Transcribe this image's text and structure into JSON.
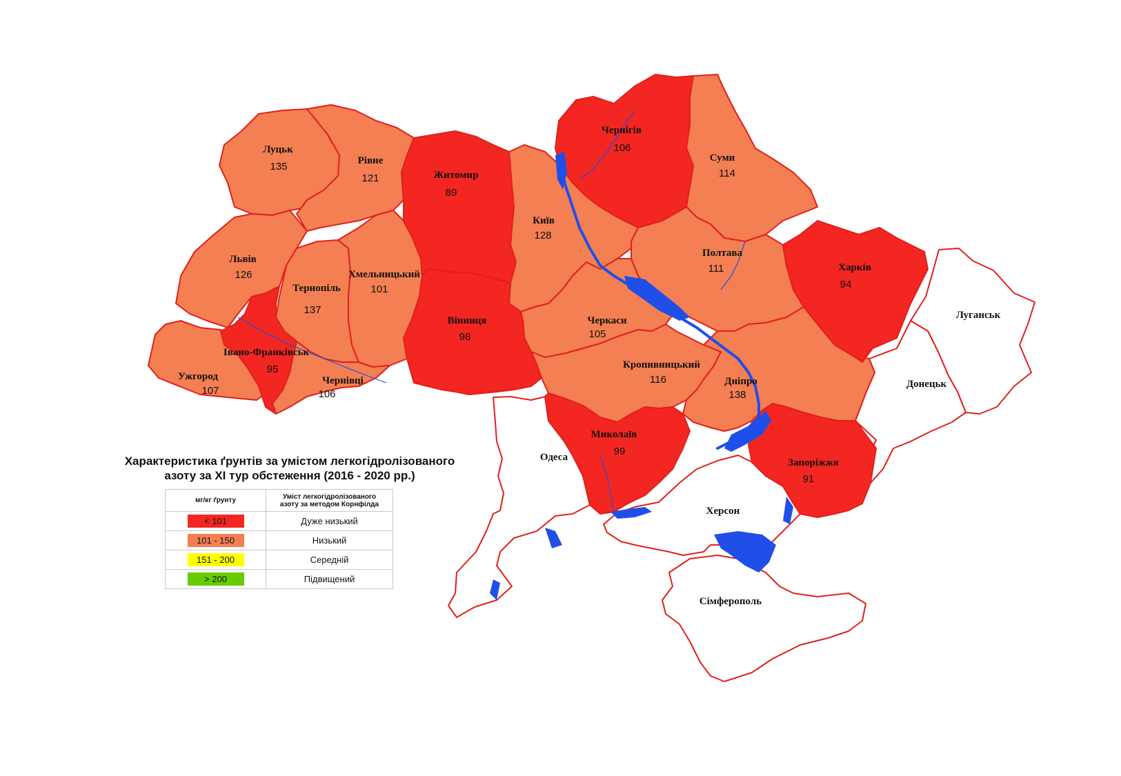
{
  "colors": {
    "very_low": "#f32621",
    "low": "#f37f52",
    "medium": "#ffff00",
    "high": "#66cc00",
    "no_data": "#ffffff",
    "water": "#1f4fe8",
    "border": "#e0201c"
  },
  "regions": {
    "lutsk": {
      "name": "Луцьк",
      "value": "135"
    },
    "rivne": {
      "name": "Рівне",
      "value": "121"
    },
    "zhytomyr": {
      "name": "Житомир",
      "value": "89"
    },
    "chernihiv": {
      "name": "Чернігів",
      "value": "106"
    },
    "sumy": {
      "name": "Суми",
      "value": "114"
    },
    "lviv": {
      "name": "Львів",
      "value": "126"
    },
    "kyiv": {
      "name": "Київ",
      "value": "128"
    },
    "ternopil": {
      "name": "Тернопіль",
      "value": "137"
    },
    "khmelnytskyi": {
      "name": "Хмельницький",
      "value": "101"
    },
    "poltava": {
      "name": "Полтава",
      "value": "111"
    },
    "kharkiv": {
      "name": "Харків",
      "value": "94"
    },
    "ivano": {
      "name": "Івано-Франківськ",
      "value": "95"
    },
    "vinnytsia": {
      "name": "Вінниця",
      "value": "98"
    },
    "cherkasy": {
      "name": "Черкаси",
      "value": "105"
    },
    "uzhhorod": {
      "name": "Ужгород",
      "value": "107"
    },
    "chernivtsi": {
      "name": "Чернівці",
      "value": "106"
    },
    "kropyvnytskyi": {
      "name": "Кропивницький",
      "value": "116"
    },
    "dnipro": {
      "name": "Дніпро",
      "value": "138"
    },
    "mykolaiv": {
      "name": "Миколаїв",
      "value": "99"
    },
    "zaporizhzhia": {
      "name": "Запоріжжя",
      "value": "91"
    },
    "luhansk": {
      "name": "Луганськ"
    },
    "donetsk": {
      "name": "Донецьк"
    },
    "odesa": {
      "name": "Одеса"
    },
    "kherson": {
      "name": "Херсон"
    },
    "simferopol": {
      "name": "Сімферополь"
    }
  },
  "legend": {
    "title_line1": "Характеристика ґрунтів за умістом легкогідролізованого",
    "title_line2": "азоту за XI тур обстеження (2016 - 2020 рр.)",
    "col1_header": "мг/кг ґрунту",
    "col2_header_line1": "Уміст легкогідролізованого",
    "col2_header_line2": "азоту за методом Корнфілда",
    "rows": [
      {
        "range": "< 101",
        "label": "Дуже низький",
        "color": "#f32621"
      },
      {
        "range": "101 - 150",
        "label": "Низький",
        "color": "#f37f52"
      },
      {
        "range": "151 - 200",
        "label": "Середній",
        "color": "#ffff00"
      },
      {
        "range": "> 200",
        "label": "Підвищений",
        "color": "#66cc00"
      }
    ]
  }
}
